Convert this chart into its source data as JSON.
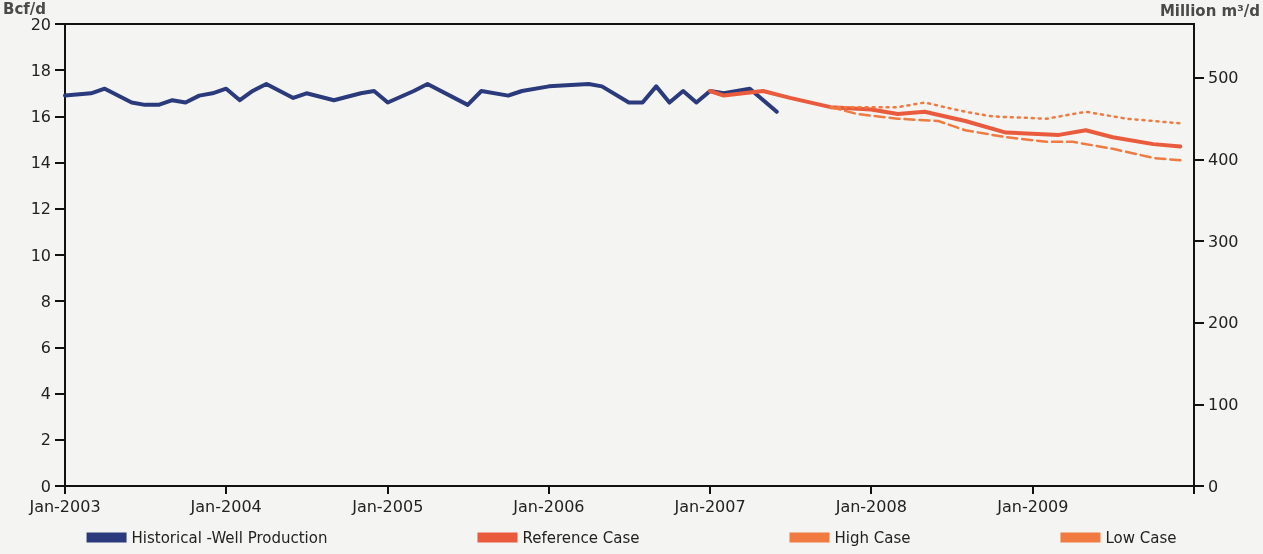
{
  "chart_data": {
    "type": "line",
    "ylabel": "Bcf/d",
    "y2label": "Million m³/d",
    "xlim": [
      "2003-01",
      "2010-01"
    ],
    "xticks": [
      {
        "value": "2003-01",
        "label": "Jan-2003"
      },
      {
        "value": "2004-01",
        "label": "Jan-2004"
      },
      {
        "value": "2005-01",
        "label": "Jan-2005"
      },
      {
        "value": "2006-01",
        "label": "Jan-2006"
      },
      {
        "value": "2007-01",
        "label": "Jan-2007"
      },
      {
        "value": "2008-01",
        "label": "Jan-2008"
      },
      {
        "value": "2009-01",
        "label": "Jan-2009"
      },
      {
        "value": "2010-01",
        "label": null
      }
    ],
    "ylim": [
      0,
      20
    ],
    "yticks": [
      0,
      2,
      4,
      6,
      8,
      10,
      12,
      14,
      16,
      18,
      20
    ],
    "y2lim": [
      0,
      566
    ],
    "y2ticks": [
      0,
      100,
      200,
      300,
      400,
      500
    ],
    "grid": false,
    "legend": "bottom",
    "marker": "none",
    "series": [
      {
        "name": "Historical -Well Production",
        "color": "#2b3a7c",
        "line_style": "solid",
        "x": [
          "2003-01",
          "2003-03",
          "2003-04",
          "2003-06",
          "2003-07",
          "2003-08",
          "2003-09",
          "2003-10",
          "2003-11",
          "2003-12",
          "2004-01",
          "2004-02",
          "2004-03",
          "2004-04",
          "2004-06",
          "2004-07",
          "2004-09",
          "2004-11",
          "2004-12",
          "2005-01",
          "2005-03",
          "2005-04",
          "2005-07",
          "2005-08",
          "2005-10",
          "2005-11",
          "2006-01",
          "2006-04",
          "2006-05",
          "2006-07",
          "2006-08",
          "2006-09",
          "2006-10",
          "2006-11",
          "2006-12",
          "2007-01",
          "2007-02",
          "2007-04",
          "2007-06"
        ],
        "values": [
          16.9,
          17.0,
          17.2,
          16.6,
          16.5,
          16.5,
          16.7,
          16.6,
          16.9,
          17.0,
          17.2,
          16.7,
          17.1,
          17.4,
          16.8,
          17.0,
          16.7,
          17.0,
          17.1,
          16.6,
          17.1,
          17.4,
          16.5,
          17.1,
          16.9,
          17.1,
          17.3,
          17.4,
          17.3,
          16.6,
          16.6,
          17.3,
          16.6,
          17.1,
          16.6,
          17.1,
          17.0,
          17.2,
          16.2
        ]
      },
      {
        "name": "Reference Case",
        "color": "#ea5a3c",
        "line_style": "solid",
        "x": [
          "2007-01",
          "2007-02",
          "2007-05",
          "2007-07",
          "2007-10",
          "2008-01",
          "2008-03",
          "2008-05",
          "2008-08",
          "2008-11",
          "2009-03",
          "2009-05",
          "2009-07",
          "2009-10",
          "2009-12"
        ],
        "values": [
          17.1,
          16.9,
          17.1,
          16.8,
          16.4,
          16.3,
          16.1,
          16.2,
          15.8,
          15.3,
          15.2,
          15.4,
          15.1,
          14.8,
          14.7
        ]
      },
      {
        "name": "High Case",
        "color": "#f07a40",
        "line_style": "dotted",
        "x": [
          "2007-10",
          "2008-03",
          "2008-05",
          "2008-08",
          "2008-10",
          "2009-02",
          "2009-05",
          "2009-08",
          "2009-12"
        ],
        "values": [
          16.4,
          16.4,
          16.6,
          16.2,
          16.0,
          15.9,
          16.2,
          15.9,
          15.7
        ]
      },
      {
        "name": "Low Case",
        "color": "#f07a40",
        "line_style": "dashed",
        "x": [
          "2007-10",
          "2007-12",
          "2008-03",
          "2008-06",
          "2008-08",
          "2008-11",
          "2009-02",
          "2009-04",
          "2009-07",
          "2009-10",
          "2009-12"
        ],
        "values": [
          16.4,
          16.1,
          15.9,
          15.8,
          15.4,
          15.1,
          14.9,
          14.9,
          14.6,
          14.2,
          14.1
        ]
      }
    ]
  }
}
